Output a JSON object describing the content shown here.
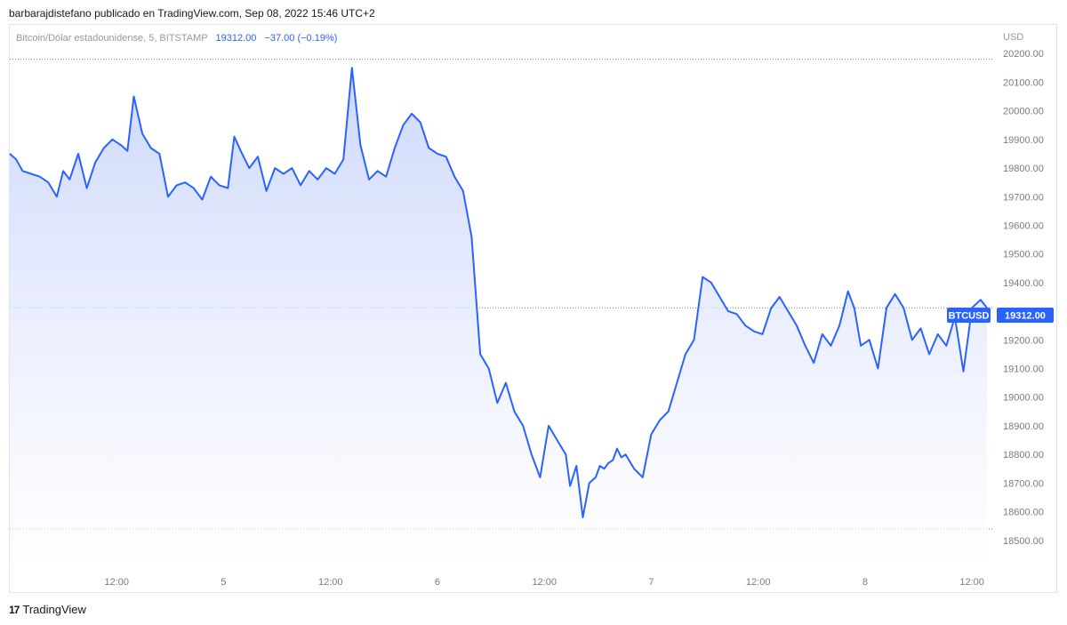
{
  "header": {
    "attribution": "barbarajdistefano publicado en TradingView.com, Sep 08, 2022 15:46 UTC+2"
  },
  "legend": {
    "symbol": "Bitcoin/Dólar estadounidense, 5, BITSTAMP",
    "last": "19312.00",
    "change": "−37.00 (−0.19%)"
  },
  "footer": {
    "brand": "TradingView",
    "logo_mark": "17"
  },
  "price_tag": {
    "symbol": "BTCUSD",
    "value": "19312.00"
  },
  "colors": {
    "line": "#2962ff",
    "area_top": "#c7d3fb",
    "area_bottom": "#ffffff",
    "tag_bg": "#2962ff"
  },
  "chart_data": {
    "type": "area",
    "title": "Bitcoin/Dólar estadounidense, 5, BITSTAMP",
    "currency_label": "USD",
    "ylim": [
      18400,
      20300
    ],
    "yticks": [
      18500,
      18600,
      18700,
      18800,
      18900,
      19000,
      19100,
      19200,
      19300,
      19400,
      19500,
      19600,
      19700,
      19800,
      19900,
      20000,
      20100,
      20200
    ],
    "ytick_labels": [
      "18500.00",
      "18600.00",
      "18700.00",
      "18800.00",
      "18900.00",
      "19000.00",
      "19100.00",
      "19200.00",
      "19300.00",
      "19400.00",
      "19500.00",
      "19600.00",
      "19700.00",
      "19800.00",
      "19900.00",
      "20000.00",
      "20100.00",
      "20200.00"
    ],
    "xlim": [
      0,
      4.57
    ],
    "xticks": [
      {
        "x": 0.5,
        "label": "12:00"
      },
      {
        "x": 1,
        "label": "5"
      },
      {
        "x": 1.5,
        "label": "12:00"
      },
      {
        "x": 2,
        "label": "6"
      },
      {
        "x": 2.5,
        "label": "12:00"
      },
      {
        "x": 3,
        "label": "7"
      },
      {
        "x": 3.5,
        "label": "12:00"
      },
      {
        "x": 4,
        "label": "8"
      },
      {
        "x": 4.5,
        "label": "12:00"
      }
    ],
    "reference_lines": [
      20180,
      19312,
      18540
    ],
    "series": [
      {
        "x": [
          0,
          0.03,
          0.06,
          0.1,
          0.14,
          0.18,
          0.22,
          0.25,
          0.28,
          0.32,
          0.36,
          0.4,
          0.44,
          0.48,
          0.52,
          0.55,
          0.58,
          0.62,
          0.66,
          0.7,
          0.74,
          0.78,
          0.82,
          0.86,
          0.9,
          0.94,
          0.98,
          1.02,
          1.05,
          1.08,
          1.12,
          1.16,
          1.2,
          1.24,
          1.28,
          1.32,
          1.36,
          1.4,
          1.44,
          1.48,
          1.52,
          1.56,
          1.6,
          1.64,
          1.68,
          1.72,
          1.76,
          1.8,
          1.84,
          1.88,
          1.92,
          1.96,
          2.0,
          2.04,
          2.08,
          2.12,
          2.16,
          2.2,
          2.24,
          2.28,
          2.32,
          2.36,
          2.4,
          2.44,
          2.48,
          2.52,
          2.56,
          2.6,
          2.62,
          2.65,
          2.68,
          2.71,
          2.74,
          2.76,
          2.78,
          2.8,
          2.82,
          2.84,
          2.86,
          2.88,
          2.92,
          2.96,
          3.0,
          3.04,
          3.08,
          3.12,
          3.16,
          3.2,
          3.24,
          3.28,
          3.32,
          3.36,
          3.4,
          3.44,
          3.48,
          3.52,
          3.56,
          3.6,
          3.64,
          3.68,
          3.72,
          3.76,
          3.8,
          3.84,
          3.88,
          3.92,
          3.95,
          3.98,
          4.02,
          4.06,
          4.1,
          4.14,
          4.18,
          4.22,
          4.26,
          4.3,
          4.34,
          4.38,
          4.42,
          4.46,
          4.5,
          4.54,
          4.57
        ],
        "values": [
          19850,
          19830,
          19790,
          19780,
          19770,
          19750,
          19700,
          19790,
          19760,
          19850,
          19730,
          19820,
          19870,
          19900,
          19880,
          19860,
          20050,
          19920,
          19870,
          19850,
          19700,
          19740,
          19750,
          19730,
          19690,
          19770,
          19740,
          19730,
          19910,
          19860,
          19800,
          19840,
          19720,
          19800,
          19780,
          19800,
          19740,
          19790,
          19760,
          19800,
          19780,
          19830,
          20150,
          19880,
          19760,
          19790,
          19770,
          19870,
          19950,
          19990,
          19960,
          19870,
          19850,
          19840,
          19770,
          19720,
          19560,
          19150,
          19100,
          18980,
          19050,
          18950,
          18900,
          18800,
          18720,
          18900,
          18850,
          18800,
          18690,
          18760,
          18580,
          18700,
          18720,
          18760,
          18750,
          18770,
          18780,
          18820,
          18790,
          18800,
          18750,
          18720,
          18870,
          18920,
          18950,
          19050,
          19150,
          19200,
          19420,
          19400,
          19350,
          19300,
          19290,
          19250,
          19230,
          19220,
          19310,
          19350,
          19300,
          19250,
          19180,
          19120,
          19220,
          19180,
          19250,
          19370,
          19310,
          19180,
          19200,
          19100,
          19312,
          19360,
          19312,
          19200,
          19240,
          19150,
          19220,
          19180,
          19280,
          19090,
          19312,
          19340,
          19312
        ],
        "name": "BTCUSD"
      }
    ]
  }
}
